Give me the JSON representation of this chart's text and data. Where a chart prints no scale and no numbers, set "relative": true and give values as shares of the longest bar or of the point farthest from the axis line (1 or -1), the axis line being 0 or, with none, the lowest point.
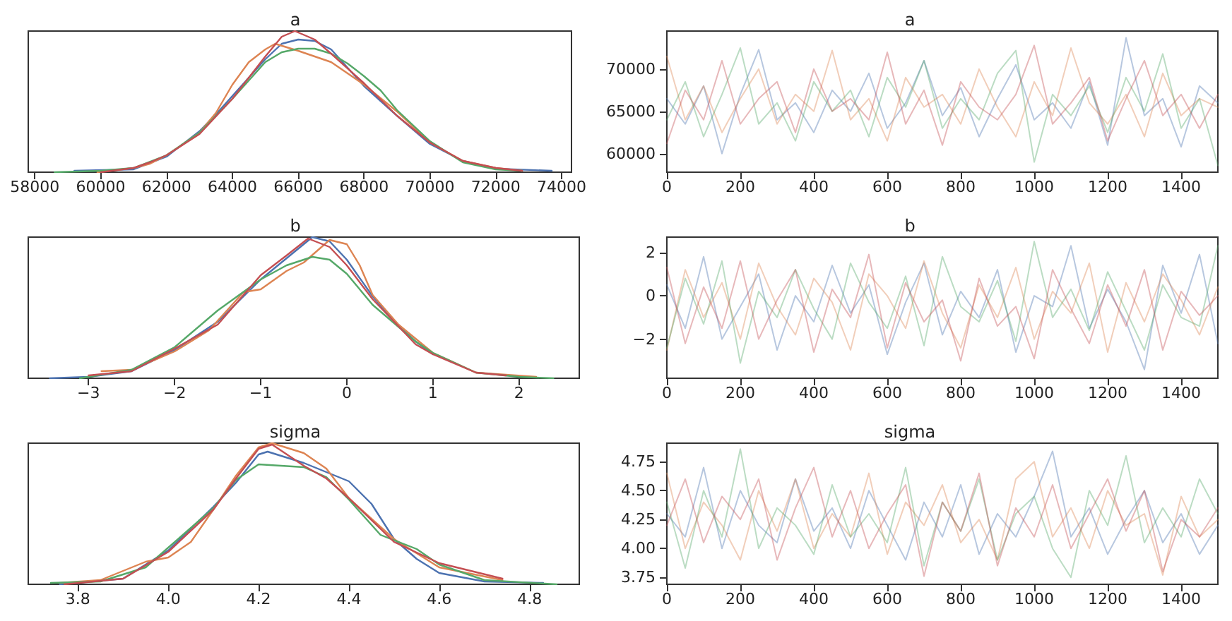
{
  "chart_data": [
    {
      "type": "line",
      "title": "a",
      "relative": true,
      "tick_labels": "x",
      "xlim": [
        57800,
        74300
      ],
      "xticks": [
        58000,
        60000,
        62000,
        64000,
        66000,
        68000,
        70000,
        72000,
        74000
      ],
      "series": [
        {
          "color": "#4c72b0",
          "x": [
            59200,
            61000,
            62000,
            63000,
            63500,
            64000,
            65000,
            65500,
            66000,
            66500,
            67000,
            68000,
            69000,
            70000,
            71000,
            72000,
            73700
          ],
          "values": [
            0.01,
            0.02,
            0.11,
            0.29,
            0.41,
            0.54,
            0.8,
            0.91,
            0.94,
            0.93,
            0.87,
            0.61,
            0.4,
            0.2,
            0.08,
            0.025,
            0.01
          ]
        },
        {
          "color": "#dd8452",
          "x": [
            59900,
            61000,
            61500,
            62000,
            63000,
            63500,
            64000,
            64500,
            65000,
            65300,
            66000,
            67000,
            68000,
            69000,
            70000,
            71000,
            72000,
            72800
          ],
          "values": [
            0.0,
            0.03,
            0.06,
            0.12,
            0.28,
            0.42,
            0.62,
            0.78,
            0.87,
            0.91,
            0.86,
            0.78,
            0.62,
            0.43,
            0.21,
            0.08,
            0.03,
            0.01
          ]
        },
        {
          "color": "#55a868",
          "x": [
            58600,
            60000,
            61000,
            62000,
            63000,
            64000,
            65000,
            65500,
            66000,
            66500,
            67000,
            67500,
            68000,
            68500,
            69000,
            70000,
            71000,
            72000,
            72800
          ],
          "values": [
            0.0,
            0.01,
            0.03,
            0.12,
            0.28,
            0.52,
            0.78,
            0.85,
            0.875,
            0.875,
            0.84,
            0.77,
            0.68,
            0.58,
            0.44,
            0.22,
            0.07,
            0.02,
            0.01
          ]
        },
        {
          "color": "#c44e52",
          "x": [
            60000,
            61000,
            61500,
            62000,
            63000,
            64000,
            65000,
            65500,
            65900,
            66500,
            67000,
            68000,
            69000,
            70000,
            71000,
            72000,
            72800
          ],
          "values": [
            0.0,
            0.03,
            0.07,
            0.12,
            0.27,
            0.52,
            0.82,
            0.96,
            1.0,
            0.94,
            0.84,
            0.63,
            0.4,
            0.21,
            0.08,
            0.03,
            0.01
          ]
        }
      ]
    },
    {
      "type": "line",
      "title": "a",
      "xlim": [
        0,
        1500
      ],
      "xticks": [
        0,
        200,
        400,
        600,
        800,
        1000,
        1200,
        1400
      ],
      "ylim": [
        57800,
        74500
      ],
      "yticks": [
        60000,
        65000,
        70000
      ],
      "x": [
        0,
        50,
        100,
        150,
        200,
        250,
        300,
        350,
        400,
        450,
        500,
        550,
        600,
        650,
        700,
        750,
        800,
        850,
        900,
        950,
        1000,
        1050,
        1100,
        1150,
        1200,
        1250,
        1300,
        1350,
        1400,
        1450,
        1500
      ],
      "series": [
        {
          "color": "#4c72b0",
          "values": [
            66500,
            63500,
            68000,
            60000,
            67000,
            72300,
            64000,
            66000,
            62500,
            67500,
            65000,
            69500,
            63000,
            66000,
            71000,
            64500,
            67800,
            62000,
            66500,
            70500,
            64000,
            66000,
            63000,
            68500,
            61000,
            73700,
            64500,
            66500,
            60800,
            68000,
            66000
          ]
        },
        {
          "color": "#dd8452",
          "values": [
            71500,
            64000,
            68000,
            62500,
            66500,
            70000,
            63500,
            67000,
            65000,
            72200,
            64000,
            66500,
            61500,
            69000,
            65500,
            67000,
            63500,
            70000,
            65500,
            62000,
            68500,
            64500,
            72500,
            66000,
            63500,
            67000,
            62000,
            69500,
            64500,
            66500,
            65500
          ]
        },
        {
          "color": "#55a868",
          "values": [
            64000,
            68500,
            62000,
            67000,
            72500,
            63500,
            66000,
            61500,
            68500,
            65000,
            67500,
            62000,
            69000,
            65500,
            71000,
            63000,
            66500,
            64000,
            69500,
            72200,
            59000,
            67000,
            64500,
            68000,
            62500,
            69000,
            65000,
            71800,
            63000,
            66500,
            58600
          ]
        },
        {
          "color": "#c44e52",
          "values": [
            61200,
            67500,
            64000,
            71000,
            63500,
            66500,
            68500,
            62500,
            70000,
            65000,
            66500,
            64000,
            72000,
            63500,
            67500,
            61000,
            68500,
            65500,
            64000,
            67000,
            72800,
            63500,
            66000,
            69000,
            61500,
            66500,
            71000,
            64500,
            67000,
            63000,
            67000
          ]
        }
      ]
    },
    {
      "type": "line",
      "title": "b",
      "relative": true,
      "tick_labels": "x",
      "xlim": [
        -3.7,
        2.7
      ],
      "xticks": [
        {
          "value": -3,
          "label": "−3"
        },
        {
          "value": -2,
          "label": "−2"
        },
        {
          "value": -1,
          "label": "−1"
        },
        0,
        1,
        2
      ],
      "series": [
        {
          "color": "#4c72b0",
          "x": [
            -3.45,
            -3,
            -2.5,
            -2,
            -1.5,
            -1,
            -0.7,
            -0.4,
            -0.2,
            0,
            0.3,
            0.5,
            0.8,
            1
          ],
          "values": [
            0.0,
            0.01,
            0.05,
            0.2,
            0.4,
            0.7,
            0.85,
            1.0,
            0.97,
            0.84,
            0.58,
            0.44,
            0.26,
            0.17
          ]
        },
        {
          "color": "#dd8452",
          "x": [
            -2.85,
            -2.5,
            -2,
            -1.6,
            -1.2,
            -1,
            -0.7,
            -0.5,
            -0.2,
            0,
            0.15,
            0.3,
            0.6,
            1,
            1.5,
            2.2
          ],
          "values": [
            0.05,
            0.06,
            0.19,
            0.34,
            0.61,
            0.63,
            0.76,
            0.82,
            0.98,
            0.95,
            0.8,
            0.59,
            0.38,
            0.18,
            0.04,
            0.01
          ]
        },
        {
          "color": "#55a868",
          "x": [
            -3.1,
            -2.5,
            -2,
            -1.5,
            -1,
            -0.7,
            -0.4,
            -0.2,
            0,
            0.3,
            0.8,
            1,
            1.5,
            2,
            2.4
          ],
          "values": [
            0.0,
            0.06,
            0.22,
            0.48,
            0.7,
            0.8,
            0.86,
            0.84,
            0.74,
            0.52,
            0.26,
            0.18,
            0.04,
            0.01,
            0.0
          ]
        },
        {
          "color": "#c44e52",
          "x": [
            -3,
            -2.5,
            -2,
            -1.5,
            -1,
            -0.7,
            -0.45,
            -0.2,
            0,
            0.3,
            0.8,
            1,
            1.5,
            1.85
          ],
          "values": [
            0.02,
            0.05,
            0.21,
            0.38,
            0.73,
            0.87,
            0.99,
            0.93,
            0.8,
            0.56,
            0.24,
            0.17,
            0.04,
            0.02
          ]
        }
      ]
    },
    {
      "type": "line",
      "title": "b",
      "xlim": [
        0,
        1500
      ],
      "xticks": [
        0,
        200,
        400,
        600,
        800,
        1000,
        1200,
        1400
      ],
      "ylim": [
        -3.8,
        2.7
      ],
      "yticks": [
        {
          "value": -2,
          "label": "−2"
        },
        0,
        2
      ],
      "x": [
        0,
        50,
        100,
        150,
        200,
        250,
        300,
        350,
        400,
        450,
        500,
        550,
        600,
        650,
        700,
        750,
        800,
        850,
        900,
        950,
        1000,
        1050,
        1100,
        1150,
        1200,
        1250,
        1300,
        1350,
        1400,
        1450,
        1500
      ],
      "series": [
        {
          "color": "#4c72b0",
          "values": [
            0.5,
            -1.5,
            1.8,
            -2,
            -0.5,
            1,
            -2.5,
            0,
            -1.2,
            1.4,
            -0.8,
            0.5,
            -2.7,
            -0.3,
            1.5,
            -1.8,
            0.2,
            -1,
            1.2,
            -2.6,
            0,
            -0.5,
            2.3,
            -1.5,
            0.3,
            -1.2,
            -3.4,
            1.4,
            -0.8,
            1.9,
            -2.2
          ]
        },
        {
          "color": "#dd8452",
          "values": [
            -2.5,
            1.2,
            -1,
            0.6,
            -2,
            1.5,
            -0.5,
            -1.8,
            0.8,
            -0.3,
            -2.5,
            1,
            0,
            -1.5,
            1.6,
            -0.8,
            -2.4,
            0.5,
            -1,
            1.3,
            -2,
            0.2,
            -0.8,
            1.5,
            -2.6,
            0.6,
            -1.2,
            1,
            -0.2,
            -1.8,
            0.4
          ]
        },
        {
          "color": "#55a868",
          "values": [
            -2.4,
            0.8,
            -1.3,
            1.6,
            -3.1,
            0.2,
            -1,
            1.2,
            -0.6,
            -2,
            1.5,
            -0.3,
            -1.5,
            0.9,
            -2.3,
            1.8,
            -0.5,
            -1.2,
            0.7,
            -2.1,
            2.5,
            -1,
            0.3,
            -1.6,
            1.1,
            -0.7,
            -2.5,
            0.5,
            -1,
            -1.4,
            2.3
          ]
        },
        {
          "color": "#c44e52",
          "values": [
            1.3,
            -2.2,
            0.4,
            -1.5,
            1.6,
            -2,
            -0.2,
            1.2,
            -2.6,
            0.3,
            -1,
            1.9,
            -2.4,
            0.6,
            -1.2,
            -0.2,
            -3,
            0.8,
            -1.4,
            -0.5,
            -2.9,
            1.2,
            -0.6,
            -2.2,
            0.5,
            -1.4,
            1.2,
            -2.5,
            0.2,
            -0.9,
            0
          ]
        }
      ]
    },
    {
      "type": "line",
      "title": "sigma",
      "relative": true,
      "tick_labels": "x",
      "xlim": [
        3.69,
        4.91
      ],
      "xticks": [
        3.8,
        {
          "value": 4.0,
          "label": "4.0"
        },
        4.2,
        4.4,
        4.6,
        4.8
      ],
      "series": [
        {
          "color": "#4c72b0",
          "x": [
            3.76,
            3.9,
            4.0,
            4.1,
            4.15,
            4.2,
            4.22,
            4.3,
            4.4,
            4.45,
            4.5,
            4.55,
            4.6,
            4.7,
            4.83
          ],
          "values": [
            0.0,
            0.04,
            0.24,
            0.55,
            0.72,
            0.92,
            0.94,
            0.86,
            0.73,
            0.57,
            0.32,
            0.18,
            0.08,
            0.02,
            0.01
          ]
        },
        {
          "color": "#dd8452",
          "x": [
            3.76,
            3.85,
            3.95,
            4.0,
            4.05,
            4.1,
            4.15,
            4.2,
            4.23,
            4.3,
            4.35,
            4.4,
            4.5,
            4.6,
            4.74
          ],
          "values": [
            0.01,
            0.03,
            0.16,
            0.19,
            0.3,
            0.53,
            0.77,
            0.97,
            1.0,
            0.93,
            0.82,
            0.61,
            0.32,
            0.12,
            0.03
          ]
        },
        {
          "color": "#55a868",
          "x": [
            3.74,
            3.85,
            3.95,
            4.0,
            4.1,
            4.15,
            4.2,
            4.3,
            4.35,
            4.4,
            4.47,
            4.55,
            4.6,
            4.7,
            4.86
          ],
          "values": [
            0.01,
            0.02,
            0.12,
            0.26,
            0.54,
            0.74,
            0.85,
            0.83,
            0.76,
            0.6,
            0.35,
            0.25,
            0.14,
            0.03,
            0.0
          ]
        },
        {
          "color": "#c44e52",
          "x": [
            3.77,
            3.9,
            4.0,
            4.1,
            4.15,
            4.2,
            4.23,
            4.3,
            4.35,
            4.4,
            4.5,
            4.6,
            4.74
          ],
          "values": [
            0.0,
            0.04,
            0.23,
            0.53,
            0.75,
            0.96,
            0.99,
            0.84,
            0.75,
            0.61,
            0.3,
            0.15,
            0.04
          ]
        }
      ]
    },
    {
      "type": "line",
      "title": "sigma",
      "xlim": [
        0,
        1500
      ],
      "xticks": [
        0,
        200,
        400,
        600,
        800,
        1000,
        1200,
        1400
      ],
      "ylim": [
        3.69,
        4.91
      ],
      "yticks": [
        3.75,
        {
          "value": 4.0,
          "label": "4.00"
        },
        {
          "value": 4.25,
          "label": "4.25"
        },
        {
          "value": 4.5,
          "label": "4.50"
        },
        {
          "value": 4.75,
          "label": "4.75"
        }
      ],
      "x": [
        0,
        50,
        100,
        150,
        200,
        250,
        300,
        350,
        400,
        450,
        500,
        550,
        600,
        650,
        700,
        750,
        800,
        850,
        900,
        950,
        1000,
        1050,
        1100,
        1150,
        1200,
        1250,
        1300,
        1350,
        1400,
        1450,
        1500
      ],
      "series": [
        {
          "color": "#4c72b0",
          "values": [
            4.3,
            4.1,
            4.7,
            4.0,
            4.5,
            4.2,
            4.05,
            4.6,
            4.15,
            4.35,
            4.0,
            4.5,
            4.2,
            3.9,
            4.4,
            4.1,
            4.55,
            3.95,
            4.3,
            4.1,
            4.45,
            4.84,
            4.1,
            4.35,
            3.95,
            4.25,
            4.5,
            4.05,
            4.3,
            3.95,
            4.2
          ]
        },
        {
          "color": "#dd8452",
          "values": [
            4.65,
            4.0,
            4.4,
            4.2,
            3.9,
            4.5,
            4.15,
            4.6,
            4.0,
            4.3,
            4.1,
            4.65,
            3.95,
            4.4,
            4.2,
            4.55,
            4.05,
            4.25,
            3.9,
            4.6,
            4.75,
            4.1,
            4.35,
            4.0,
            4.5,
            4.2,
            4.3,
            3.77,
            4.45,
            4.1,
            4.25
          ]
        },
        {
          "color": "#55a868",
          "values": [
            4.4,
            3.83,
            4.5,
            4.1,
            4.86,
            4.0,
            4.35,
            4.2,
            3.95,
            4.55,
            4.1,
            4.3,
            4.05,
            4.7,
            3.85,
            4.4,
            4.15,
            4.6,
            3.9,
            4.3,
            4.45,
            4.0,
            3.75,
            4.5,
            4.2,
            4.8,
            4.05,
            4.35,
            4.1,
            4.6,
            4.3
          ]
        },
        {
          "color": "#c44e52",
          "values": [
            4.2,
            4.6,
            4.05,
            4.45,
            4.25,
            4.6,
            3.9,
            4.35,
            4.7,
            4.1,
            4.5,
            4.0,
            4.3,
            4.55,
            3.76,
            4.4,
            4.15,
            4.65,
            3.85,
            4.35,
            4.1,
            4.55,
            4.0,
            4.3,
            4.6,
            4.15,
            4.5,
            3.8,
            4.25,
            4.1,
            4.35
          ]
        }
      ]
    }
  ]
}
